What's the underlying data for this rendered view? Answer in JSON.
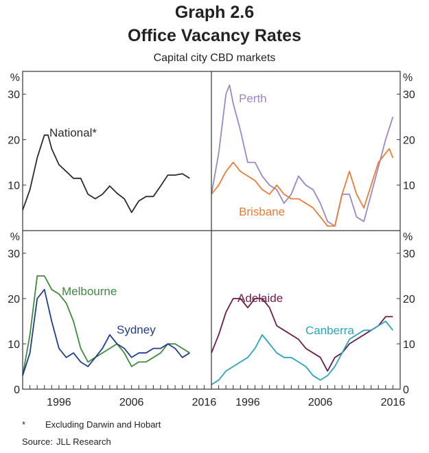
{
  "header": {
    "graph_number": "Graph 2.6",
    "title": "Office Vacancy Rates",
    "subtitle": "Capital city CBD markets"
  },
  "footer": {
    "note_mark": "*",
    "note_text": "Excluding Darwin and Hobart",
    "source_label": "Source:",
    "source_text": "JLL Research"
  },
  "chart_data": {
    "type": "line",
    "x_range": [
      1991,
      2017
    ],
    "x_tick_labels": [
      "1996",
      "2006",
      "2016"
    ],
    "x_tick_values": [
      1996,
      2006,
      2016
    ],
    "unit_label": "%",
    "colors": {
      "national": "#2b2b2b",
      "perth": "#9a87c4",
      "brisbane": "#f07a34",
      "melbourne": "#3d8a3d",
      "sydney": "#1f3d8c",
      "adelaide": "#6e1b4a",
      "canberra": "#2aa6b8",
      "axis": "#333333"
    },
    "panels": [
      {
        "name": "top-left",
        "y_range": [
          0,
          35
        ],
        "y_ticks": [
          "10",
          "20",
          "30"
        ],
        "series": [
          {
            "name": "National*",
            "color_key": "national",
            "x": [
              1991,
              1992,
              1993,
              1994,
              1994.5,
              1995,
              1996,
              1997,
              1998,
              1999,
              2000,
              2001,
              2002,
              2003,
              2004,
              2005,
              2006,
              2007,
              2008,
              2009,
              2010,
              2011,
              2012,
              2013,
              2014
            ],
            "y": [
              4.5,
              9,
              16,
              21,
              21,
              18,
              14.5,
              13,
              11.5,
              11.5,
              8,
              7,
              8,
              9.8,
              8.2,
              7,
              4,
              6.5,
              7.5,
              7.5,
              9.8,
              12.2,
              12.2,
              12.5,
              11.5
            ]
          }
        ]
      },
      {
        "name": "top-right",
        "y_range": [
          0,
          35
        ],
        "y_ticks": [
          "10",
          "20",
          "30"
        ],
        "series": [
          {
            "name": "Perth",
            "color_key": "perth",
            "x": [
              1991,
              1992,
              1993,
              1993.5,
              1994,
              1995,
              1996,
              1997,
              1998,
              1999,
              2000,
              2001,
              2002,
              2003,
              2004,
              2005,
              2006,
              2007,
              2008,
              2009,
              2010,
              2011,
              2012,
              2013,
              2014,
              2015,
              2016
            ],
            "y": [
              8,
              17,
              30,
              32,
              28,
              22,
              15,
              15,
              12,
              10,
              9,
              6,
              8,
              12,
              10,
              9,
              6,
              2,
              1,
              8,
              8,
              3,
              2,
              8,
              14,
              20,
              25
            ]
          },
          {
            "name": "Brisbane",
            "color_key": "brisbane",
            "x": [
              1991,
              1992,
              1993,
              1994,
              1995,
              1996,
              1997,
              1998,
              1999,
              2000,
              2001,
              2002,
              2003,
              2004,
              2005,
              2006,
              2007,
              2008,
              2009,
              2010,
              2011,
              2012,
              2013,
              2014,
              2015,
              2015.5,
              2016
            ],
            "y": [
              8,
              10,
              13,
              15,
              13,
              12,
              11,
              9,
              8,
              10,
              8,
              7,
              7,
              6,
              5,
              3,
              1,
              1,
              8,
              13,
              8,
              5,
              10,
              15,
              17,
              18,
              16
            ]
          }
        ]
      },
      {
        "name": "bottom-left",
        "y_range": [
          0,
          35
        ],
        "y_ticks": [
          "0",
          "10",
          "20",
          "30"
        ],
        "series": [
          {
            "name": "Melbourne",
            "color_key": "melbourne",
            "x": [
              1991,
              1992,
              1993,
              1994,
              1995,
              1996,
              1997,
              1998,
              1999,
              2000,
              2001,
              2002,
              2003,
              2004,
              2005,
              2006,
              2007,
              2008,
              2009,
              2010,
              2011,
              2012,
              2013,
              2014
            ],
            "y": [
              3,
              12,
              25,
              25,
              22,
              21,
              19,
              15,
              9,
              6,
              7,
              8,
              9,
              10,
              8,
              5,
              6,
              6,
              7,
              8,
              10,
              10,
              9,
              8
            ]
          },
          {
            "name": "Sydney",
            "color_key": "sydney",
            "x": [
              1991,
              1992,
              1993,
              1994,
              1995,
              1996,
              1997,
              1998,
              1999,
              2000,
              2001,
              2002,
              2003,
              2004,
              2005,
              2006,
              2007,
              2008,
              2009,
              2010,
              2011,
              2012,
              2013,
              2014
            ],
            "y": [
              3,
              8,
              20,
              22,
              15,
              9,
              7,
              8,
              6,
              5,
              7,
              9,
              12,
              10,
              9,
              7,
              8,
              8,
              9,
              9,
              10,
              9,
              7,
              8
            ]
          }
        ]
      },
      {
        "name": "bottom-right",
        "y_range": [
          0,
          35
        ],
        "y_ticks": [
          "0",
          "10",
          "20",
          "30"
        ],
        "series": [
          {
            "name": "Adelaide",
            "color_key": "adelaide",
            "x": [
              1991,
              1992,
              1993,
              1994,
              1995,
              1996,
              1997,
              1998,
              1999,
              2000,
              2001,
              2002,
              2003,
              2004,
              2005,
              2006,
              2007,
              2008,
              2009,
              2010,
              2011,
              2012,
              2013,
              2014,
              2015,
              2016
            ],
            "y": [
              8,
              12,
              17,
              20,
              20,
              18,
              20,
              20,
              18,
              14,
              13,
              12,
              11,
              9,
              8,
              7,
              4,
              7,
              8,
              10,
              11,
              12,
              13,
              14,
              16,
              16
            ]
          },
          {
            "name": "Canberra",
            "color_key": "canberra",
            "x": [
              1991,
              1992,
              1993,
              1994,
              1995,
              1996,
              1997,
              1998,
              1999,
              2000,
              2001,
              2002,
              2003,
              2004,
              2005,
              2006,
              2007,
              2008,
              2009,
              2010,
              2011,
              2012,
              2013,
              2014,
              2015,
              2016
            ],
            "y": [
              1,
              2,
              4,
              5,
              6,
              7,
              9,
              12,
              10,
              8,
              7,
              7,
              6,
              5,
              3,
              2,
              3,
              5,
              8,
              11,
              12,
              13,
              13,
              14,
              15,
              13
            ]
          }
        ]
      }
    ]
  }
}
